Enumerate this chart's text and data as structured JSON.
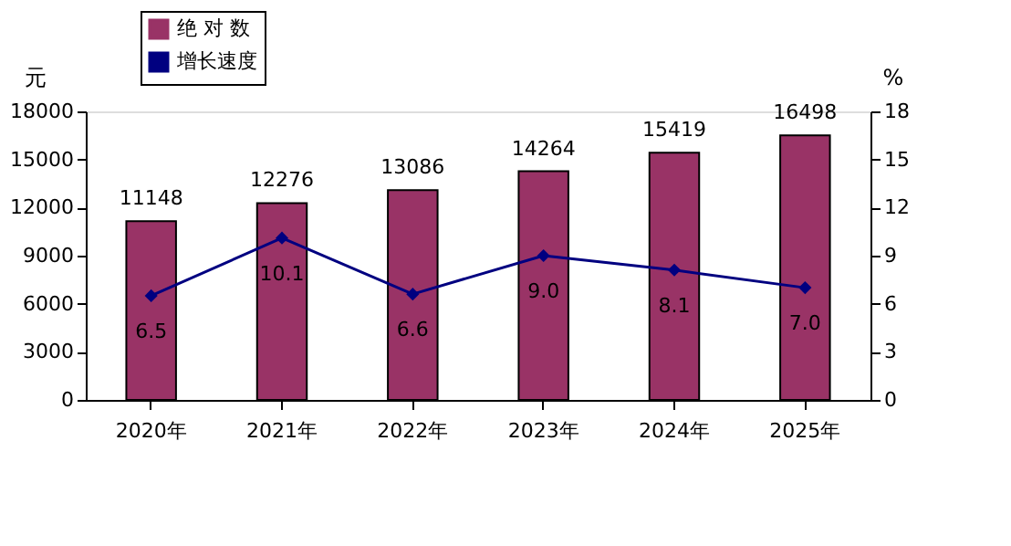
{
  "chart_data": {
    "type": "bar",
    "categories": [
      "2020年",
      "2021年",
      "2022年",
      "2023年",
      "2024年",
      "2025年"
    ],
    "series": [
      {
        "name": "绝 对 数",
        "color": "#993366",
        "values": [
          11148,
          12276,
          13086,
          14264,
          15419,
          16498
        ],
        "value_labels": [
          "11148",
          "12276",
          "13086",
          "14264",
          "15419",
          "16498"
        ]
      },
      {
        "name": "增长速度",
        "type": "line",
        "axis": "y2",
        "color": "#000080",
        "marker": "diamond",
        "line_style": "solid",
        "values": [
          6.5,
          10.1,
          6.6,
          9.0,
          8.1,
          7.0
        ],
        "value_labels": [
          "6.5",
          "10.1",
          "6.6",
          "9.0",
          "8.1",
          "7.0"
        ]
      }
    ],
    "ylabel": "元",
    "y2label": "%",
    "ylim": [
      0,
      18000
    ],
    "yticks": [
      0,
      3000,
      6000,
      9000,
      12000,
      15000,
      18000
    ],
    "y2lim": [
      0,
      18
    ],
    "y2ticks": [
      0,
      3,
      6,
      9,
      12,
      15,
      18
    ],
    "grid": false,
    "legend": "top left"
  }
}
